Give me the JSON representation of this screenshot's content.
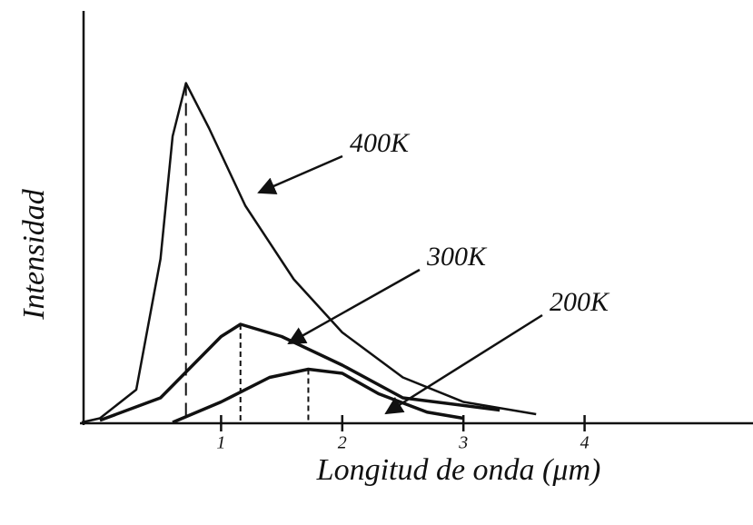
{
  "chart_data": {
    "type": "line",
    "x_label": "Longitud de onda (μm)",
    "y_label": "Intensidad",
    "xlim": [
      -0.15,
      5.39
    ],
    "ylim": [
      0,
      100
    ],
    "xticks": [
      1,
      2,
      3,
      4
    ],
    "series": [
      {
        "name": "400K",
        "color": "#111111",
        "x": [
          -0.15,
          0.0,
          0.3,
          0.5,
          0.6,
          0.71,
          0.9,
          1.2,
          1.6,
          2.0,
          2.5,
          3.0,
          3.6
        ],
        "values": [
          0,
          1,
          8,
          40,
          70,
          83,
          72,
          53,
          35,
          22,
          11,
          5,
          2
        ]
      },
      {
        "name": "300K",
        "color": "#111111",
        "x": [
          0.0,
          0.5,
          0.8,
          1.0,
          1.16,
          1.5,
          2.0,
          2.5,
          3.3
        ],
        "values": [
          0.5,
          6,
          15,
          21,
          24,
          21,
          14,
          6,
          3
        ]
      },
      {
        "name": "200K",
        "color": "#111111",
        "x": [
          0.6,
          1.0,
          1.4,
          1.72,
          2.0,
          2.3,
          2.7,
          3.0
        ],
        "values": [
          0,
          5,
          11,
          13,
          12,
          7,
          2.5,
          1
        ]
      }
    ]
  }
}
